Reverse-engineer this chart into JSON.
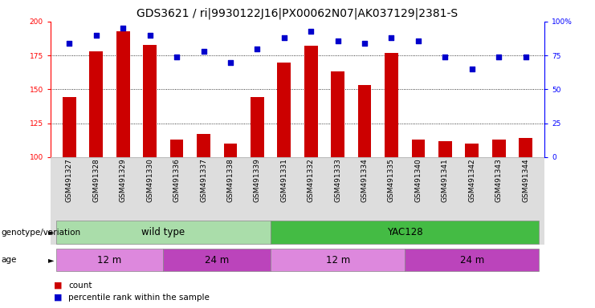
{
  "title": "GDS3621 / ri|9930122J16|PX00062N07|AK037129|2381-S",
  "samples": [
    "GSM491327",
    "GSM491328",
    "GSM491329",
    "GSM491330",
    "GSM491336",
    "GSM491337",
    "GSM491338",
    "GSM491339",
    "GSM491331",
    "GSM491332",
    "GSM491333",
    "GSM491334",
    "GSM491335",
    "GSM491340",
    "GSM491341",
    "GSM491342",
    "GSM491343",
    "GSM491344"
  ],
  "counts": [
    144,
    178,
    193,
    183,
    113,
    117,
    110,
    144,
    170,
    182,
    163,
    153,
    177,
    113,
    112,
    110,
    113,
    114
  ],
  "percentile_ranks": [
    84,
    90,
    95,
    90,
    74,
    78,
    70,
    80,
    88,
    93,
    86,
    84,
    88,
    86,
    74,
    65,
    74,
    74
  ],
  "ylim_left": [
    100,
    200
  ],
  "ylim_right": [
    0,
    100
  ],
  "yticks_left": [
    100,
    125,
    150,
    175,
    200
  ],
  "yticks_right": [
    0,
    25,
    50,
    75,
    100
  ],
  "bar_color": "#cc0000",
  "dot_color": "#0000cc",
  "bar_width": 0.5,
  "genotype_groups": [
    {
      "label": "wild type",
      "start": 0,
      "end": 8,
      "color": "#aaddaa"
    },
    {
      "label": "YAC128",
      "start": 8,
      "end": 18,
      "color": "#44bb44"
    }
  ],
  "age_groups": [
    {
      "label": "12 m",
      "start": 0,
      "end": 4,
      "color": "#dd88dd"
    },
    {
      "label": "24 m",
      "start": 4,
      "end": 8,
      "color": "#bb44bb"
    },
    {
      "label": "12 m",
      "start": 8,
      "end": 13,
      "color": "#dd88dd"
    },
    {
      "label": "24 m",
      "start": 13,
      "end": 18,
      "color": "#bb44bb"
    }
  ],
  "legend_count_color": "#cc0000",
  "legend_dot_color": "#0000cc",
  "bg_color": "#ffffff",
  "title_fontsize": 10,
  "tick_fontsize": 6.5,
  "label_fontsize": 8.5,
  "panel_label_fontsize": 7.5
}
